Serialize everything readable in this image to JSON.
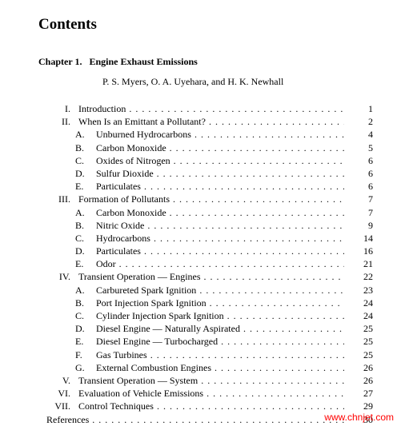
{
  "title": "Contents",
  "chapter_label": "Chapter 1.",
  "chapter_title": "Engine Exhaust Emissions",
  "authors": "P. S. Myers, O. A. Uyehara, and H. K. Newhall",
  "entries": [
    {
      "num": "I.",
      "let": "",
      "label": "Introduction",
      "page": "1"
    },
    {
      "num": "II.",
      "let": "",
      "label": "When Is an Emittant a Pollutant?",
      "page": "2"
    },
    {
      "num": "",
      "let": "A.",
      "label": "Unburned Hydrocarbons",
      "page": "4"
    },
    {
      "num": "",
      "let": "B.",
      "label": "Carbon Monoxide",
      "page": "5"
    },
    {
      "num": "",
      "let": "C.",
      "label": "Oxides of Nitrogen",
      "page": "6"
    },
    {
      "num": "",
      "let": "D.",
      "label": "Sulfur Dioxide",
      "page": "6"
    },
    {
      "num": "",
      "let": "E.",
      "label": "Particulates",
      "page": "6"
    },
    {
      "num": "III.",
      "let": "",
      "label": "Formation of Pollutants",
      "page": "7"
    },
    {
      "num": "",
      "let": "A.",
      "label": "Carbon Monoxide",
      "page": "7"
    },
    {
      "num": "",
      "let": "B.",
      "label": "Nitric Oxide",
      "page": "9"
    },
    {
      "num": "",
      "let": "C.",
      "label": "Hydrocarbons",
      "page": "14"
    },
    {
      "num": "",
      "let": "D.",
      "label": "Particulates",
      "page": "16"
    },
    {
      "num": "",
      "let": "E.",
      "label": "Odor",
      "page": "21"
    },
    {
      "num": "IV.",
      "let": "",
      "label": "Transient Operation — Engines",
      "page": "22"
    },
    {
      "num": "",
      "let": "A.",
      "label": "Carbureted Spark Ignition",
      "page": "23"
    },
    {
      "num": "",
      "let": "B.",
      "label": "Port Injection Spark Ignition",
      "page": "24"
    },
    {
      "num": "",
      "let": "C.",
      "label": "Cylinder Injection Spark Ignition",
      "page": "24"
    },
    {
      "num": "",
      "let": "D.",
      "label": "Diesel Engine — Naturally Aspirated",
      "page": "25"
    },
    {
      "num": "",
      "let": "E.",
      "label": "Diesel Engine — Turbocharged",
      "page": "25"
    },
    {
      "num": "",
      "let": "F.",
      "label": "Gas Turbines",
      "page": "25"
    },
    {
      "num": "",
      "let": "G.",
      "label": "External Combustion Engines",
      "page": "26"
    },
    {
      "num": "V.",
      "let": "",
      "label": "Transient Operation — System",
      "page": "26"
    },
    {
      "num": "VI.",
      "let": "",
      "label": "Evaluation of Vehicle Emissions",
      "page": "27"
    },
    {
      "num": "VII.",
      "let": "",
      "label": "Control Techniques",
      "page": "29"
    },
    {
      "num": "",
      "let": "",
      "label": "References",
      "page": "30",
      "ref": true
    }
  ],
  "watermark": "www.chnjet.com",
  "colors": {
    "text": "#000000",
    "background": "#ffffff",
    "watermark": "#ff0000"
  },
  "font": {
    "body_family": "Times New Roman",
    "body_size_pt": 9,
    "title_size_pt": 15,
    "title_weight": "bold"
  }
}
